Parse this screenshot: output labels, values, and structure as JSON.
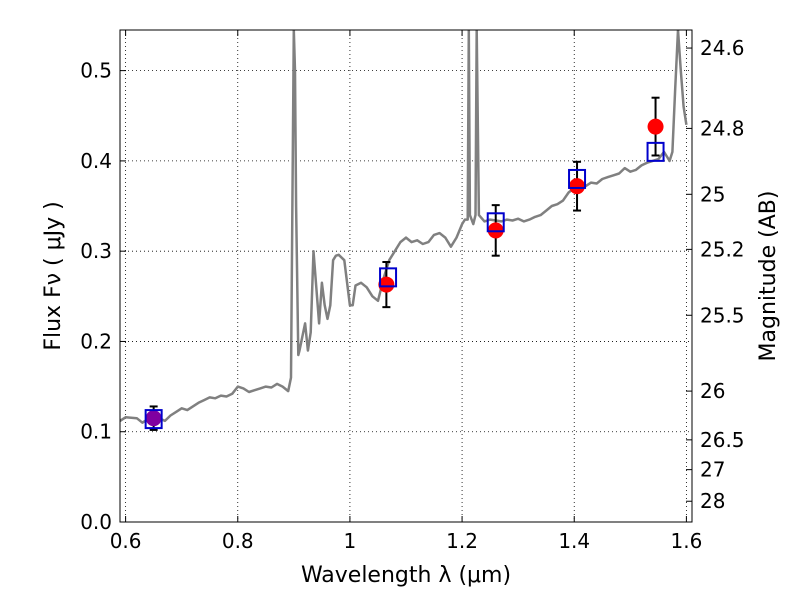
{
  "chart_data": {
    "type": "line",
    "xlabel": "Wavelength  λ (μm)",
    "ylabel": "Flux  Fν  ( μJy )",
    "y2label": "Magnitude (AB)",
    "xlim": [
      0.59,
      1.61
    ],
    "ylim": [
      0.0,
      0.545
    ],
    "grid": true,
    "grid_style": "dotted",
    "x_ticks": [
      0.6,
      0.8,
      1.0,
      1.2,
      1.4,
      1.6
    ],
    "x_tick_labels": [
      "0.6",
      "0.8",
      "1",
      "1.2",
      "1.4",
      "1.6"
    ],
    "y_ticks": [
      0.0,
      0.1,
      0.2,
      0.3,
      0.4,
      0.5
    ],
    "y_tick_labels": [
      "0.0",
      "0.1",
      "0.2",
      "0.3",
      "0.4",
      "0.5"
    ],
    "y2_ticks": [
      {
        "label": "24.6",
        "flux": 0.525
      },
      {
        "label": "24.8",
        "flux": 0.436
      },
      {
        "label": "25",
        "flux": 0.363
      },
      {
        "label": "25.2",
        "flux": 0.302
      },
      {
        "label": "25.5",
        "flux": 0.229
      },
      {
        "label": "26",
        "flux": 0.145
      },
      {
        "label": "26.5",
        "flux": 0.091
      },
      {
        "label": "27",
        "flux": 0.058
      },
      {
        "label": "28",
        "flux": 0.023
      }
    ],
    "series": [
      {
        "kind": "line",
        "color": "#808080",
        "x": [
          0.59,
          0.6,
          0.62,
          0.63,
          0.64,
          0.65,
          0.66,
          0.67,
          0.68,
          0.69,
          0.7,
          0.71,
          0.72,
          0.73,
          0.74,
          0.75,
          0.76,
          0.77,
          0.78,
          0.79,
          0.8,
          0.81,
          0.82,
          0.83,
          0.84,
          0.85,
          0.86,
          0.87,
          0.88,
          0.89,
          0.895,
          0.9,
          0.902,
          0.904,
          0.908,
          0.91,
          0.915,
          0.92,
          0.925,
          0.93,
          0.935,
          0.94,
          0.945,
          0.95,
          0.955,
          0.96,
          0.965,
          0.97,
          0.975,
          0.98,
          0.99,
          1.0,
          1.005,
          1.01,
          1.02,
          1.03,
          1.04,
          1.05,
          1.06,
          1.07,
          1.08,
          1.09,
          1.1,
          1.11,
          1.12,
          1.13,
          1.14,
          1.15,
          1.16,
          1.17,
          1.18,
          1.19,
          1.2,
          1.205,
          1.21,
          1.212,
          1.214,
          1.22,
          1.224,
          1.226,
          1.23,
          1.24,
          1.25,
          1.26,
          1.27,
          1.28,
          1.29,
          1.3,
          1.31,
          1.32,
          1.33,
          1.34,
          1.35,
          1.36,
          1.37,
          1.38,
          1.39,
          1.4,
          1.41,
          1.42,
          1.43,
          1.44,
          1.45,
          1.46,
          1.47,
          1.48,
          1.49,
          1.5,
          1.51,
          1.52,
          1.53,
          1.54,
          1.55,
          1.56,
          1.57,
          1.575,
          1.58,
          1.585,
          1.59,
          1.595,
          1.6
        ],
        "y": [
          0.112,
          0.116,
          0.115,
          0.11,
          0.114,
          0.118,
          0.115,
          0.112,
          0.118,
          0.122,
          0.126,
          0.124,
          0.128,
          0.132,
          0.135,
          0.138,
          0.137,
          0.14,
          0.139,
          0.142,
          0.15,
          0.148,
          0.144,
          0.146,
          0.148,
          0.15,
          0.149,
          0.153,
          0.15,
          0.145,
          0.16,
          0.545,
          0.5,
          0.35,
          0.185,
          0.19,
          0.205,
          0.22,
          0.19,
          0.21,
          0.3,
          0.26,
          0.22,
          0.265,
          0.24,
          0.225,
          0.24,
          0.29,
          0.295,
          0.296,
          0.29,
          0.24,
          0.24,
          0.262,
          0.265,
          0.26,
          0.25,
          0.245,
          0.27,
          0.29,
          0.3,
          0.31,
          0.315,
          0.31,
          0.312,
          0.308,
          0.31,
          0.318,
          0.32,
          0.315,
          0.305,
          0.315,
          0.33,
          0.335,
          0.335,
          0.545,
          0.34,
          0.33,
          0.34,
          0.545,
          0.34,
          0.333,
          0.335,
          0.334,
          0.333,
          0.335,
          0.334,
          0.336,
          0.333,
          0.335,
          0.338,
          0.34,
          0.345,
          0.35,
          0.352,
          0.356,
          0.365,
          0.37,
          0.368,
          0.372,
          0.376,
          0.375,
          0.38,
          0.382,
          0.384,
          0.386,
          0.392,
          0.388,
          0.39,
          0.395,
          0.398,
          0.4,
          0.402,
          0.41,
          0.4,
          0.41,
          0.48,
          0.545,
          0.5,
          0.46,
          0.44
        ]
      },
      {
        "kind": "scatter",
        "marker": "circle",
        "color": "#ff0000",
        "x": [
          1.065,
          1.26,
          1.405,
          1.545
        ],
        "y": [
          0.263,
          0.323,
          0.372,
          0.438
        ],
        "yerr": [
          0.025,
          0.028,
          0.027,
          0.032
        ]
      },
      {
        "kind": "scatter",
        "marker": "circle",
        "color": "#8000a0",
        "x": [
          0.65
        ],
        "y": [
          0.115
        ],
        "yerr": [
          0.013
        ]
      },
      {
        "kind": "scatter",
        "marker": "square-open",
        "color": "#0000cc",
        "x": [
          0.65,
          1.068,
          1.26,
          1.405,
          1.545
        ],
        "y": [
          0.114,
          0.271,
          0.332,
          0.38,
          0.41
        ]
      }
    ]
  }
}
